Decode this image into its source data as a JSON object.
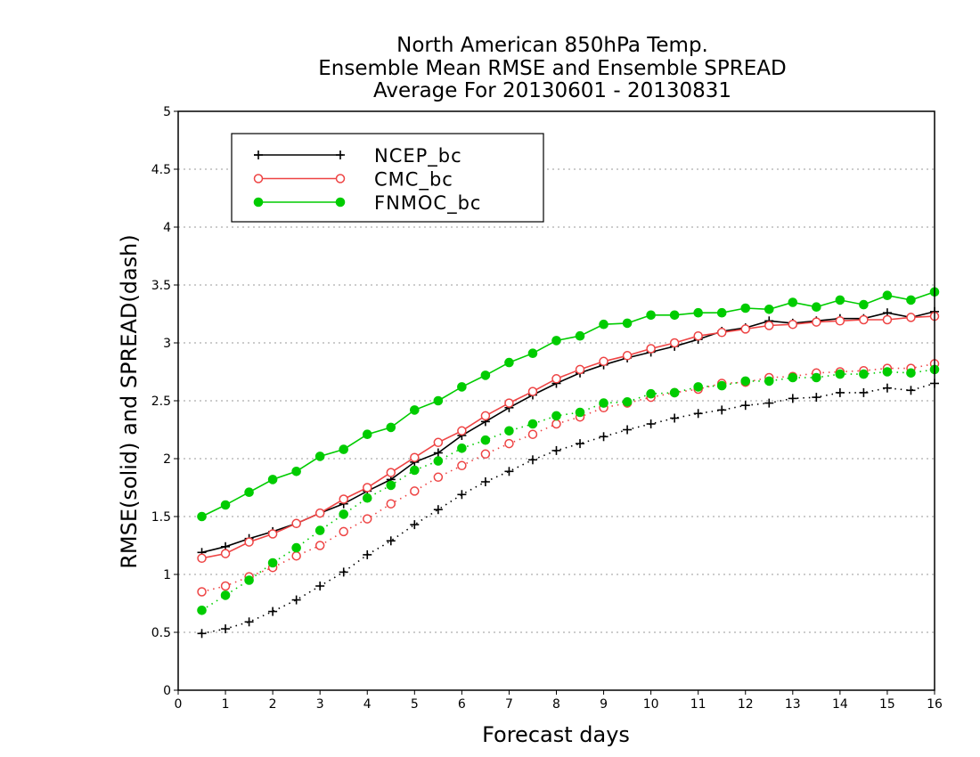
{
  "chart_data": {
    "type": "line",
    "title": [
      "North American 850hPa Temp.",
      "Ensemble Mean RMSE and Ensemble SPREAD",
      "Average For 20130601 - 20130831"
    ],
    "xlabel": "Forecast days",
    "ylabel": "RMSE(solid) and SPREAD(dash)",
    "xlim": [
      0,
      16
    ],
    "ylim": [
      0,
      5
    ],
    "xticks": [
      "0",
      "1",
      "2",
      "3",
      "4",
      "5",
      "6",
      "7",
      "8",
      "9",
      "10",
      "11",
      "12",
      "13",
      "14",
      "15",
      "16"
    ],
    "yticks": [
      "0",
      "0.5",
      "1",
      "1.5",
      "2",
      "2.5",
      "3",
      "3.5",
      "4",
      "4.5",
      "5"
    ],
    "grid": "horizontal dotted",
    "legend_position": "top-left",
    "x": [
      0.5,
      1,
      1.5,
      2,
      2.5,
      3,
      3.5,
      4,
      4.5,
      5,
      5.5,
      6,
      6.5,
      7,
      7.5,
      8,
      8.5,
      9,
      9.5,
      10,
      10.5,
      11,
      11.5,
      12,
      12.5,
      13,
      13.5,
      14,
      14.5,
      15,
      15.5,
      16
    ],
    "series": [
      {
        "name": "NCEP_bc",
        "color": "#000000",
        "marker": "plus",
        "rmse": [
          1.19,
          1.24,
          1.31,
          1.37,
          1.44,
          1.53,
          1.61,
          1.72,
          1.82,
          1.97,
          2.05,
          2.2,
          2.32,
          2.44,
          2.55,
          2.65,
          2.74,
          2.81,
          2.87,
          2.92,
          2.97,
          3.03,
          3.1,
          3.13,
          3.19,
          3.17,
          3.19,
          3.21,
          3.21,
          3.26,
          3.22,
          3.27
        ],
        "spread": [
          0.49,
          0.53,
          0.59,
          0.68,
          0.78,
          0.9,
          1.02,
          1.17,
          1.29,
          1.43,
          1.56,
          1.69,
          1.8,
          1.89,
          1.99,
          2.07,
          2.13,
          2.19,
          2.25,
          2.3,
          2.35,
          2.39,
          2.42,
          2.46,
          2.48,
          2.52,
          2.53,
          2.57,
          2.57,
          2.61,
          2.59,
          2.65
        ]
      },
      {
        "name": "CMC_bc",
        "color": "#ee4444",
        "marker": "open-circle",
        "rmse": [
          1.14,
          1.18,
          1.28,
          1.35,
          1.44,
          1.53,
          1.65,
          1.75,
          1.88,
          2.01,
          2.14,
          2.24,
          2.37,
          2.48,
          2.58,
          2.69,
          2.77,
          2.84,
          2.89,
          2.95,
          3.0,
          3.06,
          3.09,
          3.12,
          3.15,
          3.16,
          3.18,
          3.19,
          3.2,
          3.2,
          3.22,
          3.23
        ],
        "spread": [
          0.85,
          0.9,
          0.98,
          1.06,
          1.16,
          1.25,
          1.37,
          1.48,
          1.61,
          1.72,
          1.84,
          1.94,
          2.04,
          2.13,
          2.21,
          2.3,
          2.36,
          2.44,
          2.48,
          2.53,
          2.57,
          2.6,
          2.65,
          2.66,
          2.7,
          2.71,
          2.74,
          2.75,
          2.76,
          2.78,
          2.78,
          2.82
        ]
      },
      {
        "name": "FNMOC_bc",
        "color": "#00cc00",
        "marker": "filled-circle",
        "rmse": [
          1.5,
          1.6,
          1.71,
          1.82,
          1.89,
          2.02,
          2.08,
          2.21,
          2.27,
          2.42,
          2.5,
          2.62,
          2.72,
          2.83,
          2.91,
          3.02,
          3.06,
          3.16,
          3.17,
          3.24,
          3.24,
          3.26,
          3.26,
          3.3,
          3.29,
          3.35,
          3.31,
          3.37,
          3.33,
          3.41,
          3.37,
          3.44
        ],
        "spread": [
          0.69,
          0.82,
          0.95,
          1.1,
          1.23,
          1.38,
          1.52,
          1.66,
          1.77,
          1.9,
          1.98,
          2.09,
          2.16,
          2.24,
          2.3,
          2.37,
          2.4,
          2.48,
          2.49,
          2.56,
          2.57,
          2.62,
          2.63,
          2.67,
          2.67,
          2.7,
          2.7,
          2.73,
          2.73,
          2.75,
          2.74,
          2.77
        ]
      }
    ]
  }
}
